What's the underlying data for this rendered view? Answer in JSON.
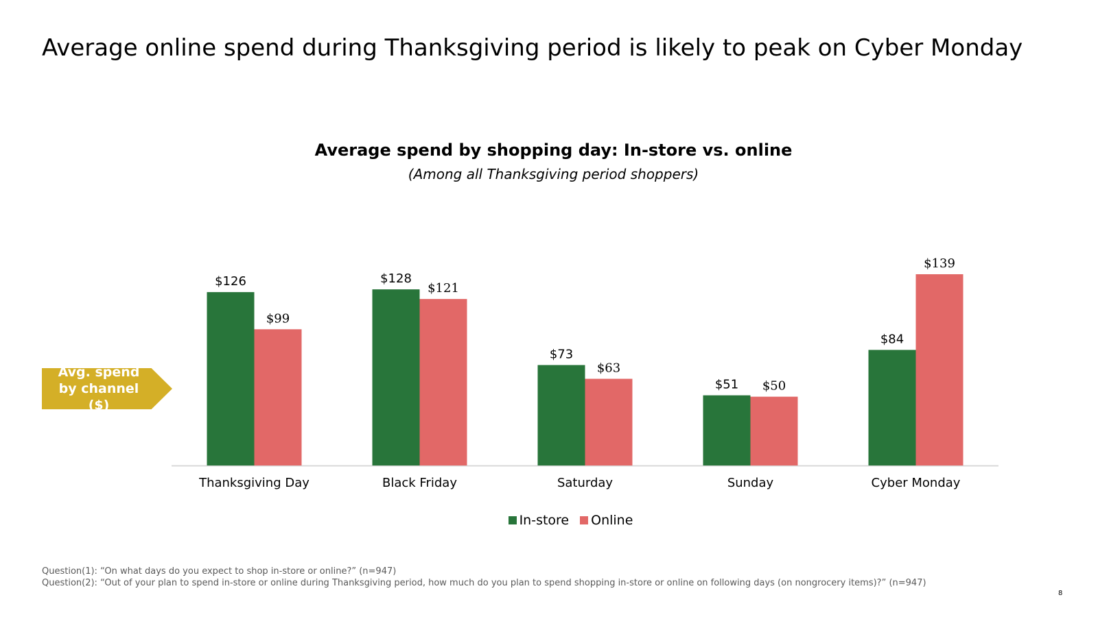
{
  "page": {
    "title": "Average online spend during Thanksgiving period is likely to peak on Cyber Monday",
    "callout": "Avg. spend by channel ($)",
    "footnotes": [
      "Question(1): “On what days do you expect to shop in-store or online?” (n=947)",
      "Question(2): “Out of your plan to spend in-store or online during Thanksgiving period, how much do you plan to spend shopping in-store or online on following days (on nongrocery items)?” (n=947)"
    ],
    "page_number": "8"
  },
  "chart_data": {
    "type": "bar",
    "title": "Average spend by shopping day: In-store vs. online",
    "subtitle": "(Among all Thanksgiving period shoppers)",
    "categories": [
      "Thanksgiving Day",
      "Black Friday",
      "Saturday",
      "Sunday",
      "Cyber Monday"
    ],
    "series": [
      {
        "name": "In-store",
        "color": "#28753A",
        "values": [
          126,
          128,
          73,
          51,
          84
        ],
        "labels": [
          "$126",
          "$128",
          "$73",
          "$51",
          "$84"
        ]
      },
      {
        "name": "Online",
        "color": "#E26867",
        "values": [
          99,
          121,
          63,
          50,
          139
        ],
        "labels": [
          "$99",
          "$121",
          "$63",
          "$50",
          "$139"
        ]
      }
    ],
    "ylim": [
      0,
      140
    ],
    "xlabel": "",
    "ylabel": "",
    "legend": "bottom-center",
    "grid": false
  }
}
